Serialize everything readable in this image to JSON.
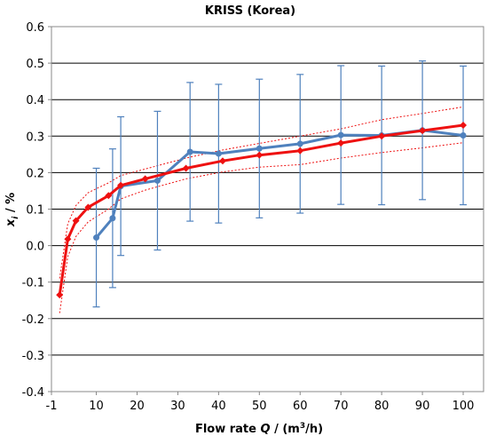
{
  "chart_data": {
    "type": "line",
    "title": "KRISS (Korea)",
    "xlabel": {
      "prefix": "Flow rate ",
      "var": "Q",
      "mid": " / (m",
      "sup": "3",
      "suffix": "/h)"
    },
    "ylabel": {
      "var": "x",
      "sub": "i",
      "suffix": " / %"
    },
    "xlim": [
      -1,
      105
    ],
    "ylim": [
      -0.4,
      0.6
    ],
    "x_ticks": [
      "-1",
      "10",
      "20",
      "30",
      "40",
      "50",
      "60",
      "70",
      "80",
      "90",
      "100"
    ],
    "y_ticks": [
      "-0.4",
      "-0.3",
      "-0.2",
      "-0.1",
      "0.0",
      "0.1",
      "0.2",
      "0.3",
      "0.4",
      "0.5",
      "0.6"
    ],
    "grid": "horizontal",
    "series": [
      {
        "color": "#4f81bd",
        "marker": "circle",
        "x": [
          10,
          14,
          16,
          25,
          33,
          40,
          50,
          60,
          70,
          80,
          90,
          100
        ],
        "y": [
          0.022,
          0.075,
          0.163,
          0.178,
          0.257,
          0.252,
          0.266,
          0.279,
          0.303,
          0.302,
          0.316,
          0.302
        ],
        "error": [
          0.19,
          0.19,
          0.19,
          0.19,
          0.19,
          0.19,
          0.19,
          0.19,
          0.19,
          0.19,
          0.19,
          0.19
        ]
      },
      {
        "color": "#ee1111",
        "marker": "diamond",
        "x": [
          1,
          3,
          5,
          8,
          13,
          16,
          22,
          32,
          41,
          50,
          60,
          70,
          80,
          90,
          100
        ],
        "y": [
          -0.135,
          0.018,
          0.068,
          0.105,
          0.137,
          0.165,
          0.183,
          0.212,
          0.232,
          0.248,
          0.26,
          0.281,
          0.3,
          0.315,
          0.33
        ]
      },
      {
        "color": "#ee1111",
        "style": "dotted",
        "x": [
          1,
          3,
          5,
          8,
          13,
          16,
          22,
          32,
          41,
          50,
          60,
          70,
          80,
          90,
          100
        ],
        "y": [
          -0.09,
          0.06,
          0.11,
          0.145,
          0.172,
          0.192,
          0.21,
          0.24,
          0.262,
          0.28,
          0.3,
          0.32,
          0.345,
          0.362,
          0.38
        ]
      },
      {
        "color": "#ee1111",
        "style": "dotted",
        "x": [
          1,
          3,
          5,
          8,
          13,
          16,
          22,
          32,
          41,
          50,
          60,
          70,
          80,
          90,
          100
        ],
        "y": [
          -0.185,
          -0.03,
          0.025,
          0.065,
          0.1,
          0.128,
          0.152,
          0.183,
          0.202,
          0.215,
          0.222,
          0.24,
          0.255,
          0.268,
          0.282
        ]
      }
    ]
  }
}
